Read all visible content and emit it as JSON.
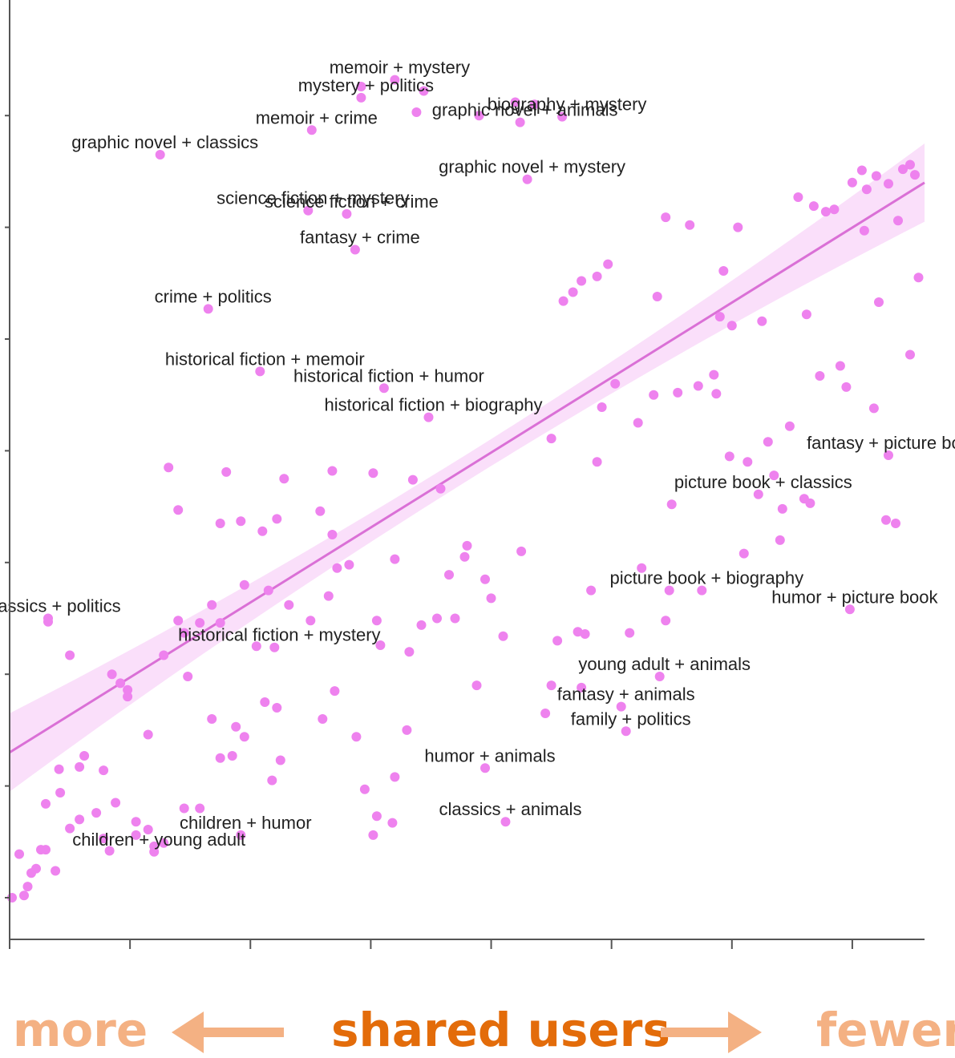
{
  "colors": {
    "point": "#ee82ee",
    "trend": "#da70d6",
    "band": "#f6c9f6",
    "axis": "#555555",
    "label": "#222222",
    "footer_light": "#f4b183",
    "footer_dark": "#e36c0a"
  },
  "footer": {
    "left": "more",
    "center": "shared users",
    "right": "fewer",
    "left_arrow_icon": "left-arrow-icon",
    "right_arrow_icon": "right-arrow-icon"
  },
  "chart_data": {
    "type": "scatter",
    "title": "",
    "xlabel": "shared users",
    "ylabel": "",
    "xlim": [
      0,
      7.6
    ],
    "ylim": [
      -0.4,
      7.2
    ],
    "x_ticks": [
      0,
      1,
      2,
      3,
      4,
      5,
      6,
      7
    ],
    "y_ticks": [
      0,
      1,
      2,
      3,
      4,
      5,
      6,
      7
    ],
    "tick_labels_shown": false,
    "grid": false,
    "trend_line": {
      "x": [
        0,
        7.6
      ],
      "y": [
        1.3,
        6.4
      ],
      "band_halfwidth_at_ends": 0.35,
      "band_halfwidth_at_center": 0.12
    },
    "labeled_points": [
      {
        "label": "memoir + mystery",
        "x": 3.2,
        "y": 7.32
      },
      {
        "label": "mystery + politics",
        "x": 2.92,
        "y": 7.16
      },
      {
        "label": "memoir + crime",
        "x": 2.51,
        "y": 6.87
      },
      {
        "label": "graphic novel + classics",
        "x": 1.25,
        "y": 6.65
      },
      {
        "label": "biography + mystery",
        "x": 4.59,
        "y": 6.99
      },
      {
        "label": "graphic novel + animals",
        "x": 4.24,
        "y": 6.94
      },
      {
        "label": "graphic novel + mystery",
        "x": 4.3,
        "y": 6.43
      },
      {
        "label": "science fiction + mystery",
        "x": 2.48,
        "y": 6.15
      },
      {
        "label": "science fiction + crime",
        "x": 2.8,
        "y": 6.12
      },
      {
        "label": "fantasy + crime",
        "x": 2.87,
        "y": 5.8
      },
      {
        "label": "crime + politics",
        "x": 1.65,
        "y": 5.27
      },
      {
        "label": "historical fiction + memoir",
        "x": 2.08,
        "y": 4.71
      },
      {
        "label": "historical fiction + humor",
        "x": 3.11,
        "y": 4.56
      },
      {
        "label": "historical fiction + biography",
        "x": 3.48,
        "y": 4.3
      },
      {
        "label": "fantasy + picture book",
        "x": 7.3,
        "y": 3.96
      },
      {
        "label": "picture book + classics",
        "x": 6.22,
        "y": 3.61
      },
      {
        "label": "picture book + biography",
        "x": 5.75,
        "y": 2.75
      },
      {
        "label": "humor + picture book",
        "x": 6.98,
        "y": 2.58
      },
      {
        "label": "classics + politics",
        "x": 0.32,
        "y": 2.5
      },
      {
        "label": "historical fiction + mystery",
        "x": 2.2,
        "y": 2.24
      },
      {
        "label": "young adult + animals",
        "x": 5.4,
        "y": 1.98
      },
      {
        "label": "fantasy + animals",
        "x": 5.08,
        "y": 1.71
      },
      {
        "label": "family + politics",
        "x": 5.12,
        "y": 1.49
      },
      {
        "label": "humor + animals",
        "x": 3.95,
        "y": 1.16
      },
      {
        "label": "classics + animals",
        "x": 4.12,
        "y": 0.68
      },
      {
        "label": "children + humor",
        "x": 1.92,
        "y": 0.56
      },
      {
        "label": "children + young adult",
        "x": 1.2,
        "y": 0.41
      }
    ],
    "other_points": [
      [
        2.92,
        7.26
      ],
      [
        3.44,
        7.22
      ],
      [
        3.38,
        7.03
      ],
      [
        3.9,
        7.0
      ],
      [
        4.2,
        7.12
      ],
      [
        4.36,
        7.1
      ],
      [
        6.55,
        6.27
      ],
      [
        6.68,
        6.19
      ],
      [
        6.78,
        6.14
      ],
      [
        6.85,
        6.16
      ],
      [
        7.0,
        6.4
      ],
      [
        7.08,
        6.51
      ],
      [
        7.12,
        6.34
      ],
      [
        7.2,
        6.46
      ],
      [
        7.3,
        6.39
      ],
      [
        7.42,
        6.52
      ],
      [
        7.52,
        6.47
      ],
      [
        7.48,
        6.56
      ],
      [
        7.1,
        5.97
      ],
      [
        7.38,
        6.06
      ],
      [
        5.45,
        6.09
      ],
      [
        5.65,
        6.02
      ],
      [
        6.05,
        6.0
      ],
      [
        4.97,
        5.67
      ],
      [
        4.88,
        5.56
      ],
      [
        4.75,
        5.52
      ],
      [
        4.68,
        5.42
      ],
      [
        4.6,
        5.34
      ],
      [
        5.38,
        5.38
      ],
      [
        5.93,
        5.61
      ],
      [
        5.9,
        5.2
      ],
      [
        6.0,
        5.12
      ],
      [
        6.25,
        5.16
      ],
      [
        6.62,
        5.22
      ],
      [
        7.22,
        5.33
      ],
      [
        7.55,
        5.55
      ],
      [
        7.48,
        4.86
      ],
      [
        6.9,
        4.76
      ],
      [
        6.95,
        4.57
      ],
      [
        7.18,
        4.38
      ],
      [
        6.73,
        4.67
      ],
      [
        6.48,
        4.22
      ],
      [
        6.3,
        4.08
      ],
      [
        6.13,
        3.9
      ],
      [
        5.85,
        4.68
      ],
      [
        5.72,
        4.58
      ],
      [
        5.55,
        4.52
      ],
      [
        5.87,
        4.51
      ],
      [
        5.35,
        4.5
      ],
      [
        5.22,
        4.25
      ],
      [
        5.03,
        4.6
      ],
      [
        4.92,
        4.39
      ],
      [
        4.5,
        4.11
      ],
      [
        4.88,
        3.9
      ],
      [
        5.98,
        3.95
      ],
      [
        6.35,
        3.78
      ],
      [
        6.6,
        3.57
      ],
      [
        6.65,
        3.53
      ],
      [
        6.42,
        3.48
      ],
      [
        7.28,
        3.38
      ],
      [
        7.36,
        3.35
      ],
      [
        6.1,
        3.08
      ],
      [
        6.4,
        3.2
      ],
      [
        5.5,
        3.52
      ],
      [
        5.25,
        2.95
      ],
      [
        5.48,
        2.75
      ],
      [
        4.72,
        2.38
      ],
      [
        4.78,
        2.36
      ],
      [
        4.55,
        2.3
      ],
      [
        4.1,
        2.34
      ],
      [
        3.95,
        2.85
      ],
      [
        3.65,
        2.89
      ],
      [
        3.42,
        2.44
      ],
      [
        3.32,
        2.2
      ],
      [
        3.55,
        2.5
      ],
      [
        3.7,
        2.5
      ],
      [
        3.78,
        3.05
      ],
      [
        3.8,
        3.15
      ],
      [
        4.0,
        2.68
      ],
      [
        4.25,
        3.1
      ],
      [
        4.83,
        2.75
      ],
      [
        5.15,
        2.37
      ],
      [
        5.45,
        2.48
      ],
      [
        4.45,
        1.65
      ],
      [
        4.5,
        1.9
      ],
      [
        4.75,
        1.88
      ],
      [
        3.88,
        1.9
      ],
      [
        3.05,
        2.48
      ],
      [
        2.65,
        2.7
      ],
      [
        2.72,
        2.95
      ],
      [
        2.82,
        2.98
      ],
      [
        2.5,
        2.48
      ],
      [
        2.32,
        2.62
      ],
      [
        2.15,
        2.75
      ],
      [
        1.95,
        2.8
      ],
      [
        1.68,
        2.62
      ],
      [
        1.58,
        2.46
      ],
      [
        1.75,
        2.46
      ],
      [
        1.4,
        2.48
      ],
      [
        1.45,
        2.37
      ],
      [
        1.28,
        2.17
      ],
      [
        2.05,
        2.25
      ],
      [
        0.32,
        2.47
      ],
      [
        2.1,
        3.28
      ],
      [
        2.28,
        3.75
      ],
      [
        2.68,
        3.82
      ],
      [
        3.02,
        3.8
      ],
      [
        3.35,
        3.74
      ],
      [
        3.58,
        3.66
      ],
      [
        1.8,
        3.81
      ],
      [
        1.32,
        3.85
      ],
      [
        1.4,
        3.47
      ],
      [
        1.92,
        3.37
      ],
      [
        2.22,
        3.39
      ],
      [
        1.75,
        3.35
      ],
      [
        2.58,
        3.46
      ],
      [
        2.68,
        3.25
      ],
      [
        3.2,
        3.03
      ],
      [
        0.5,
        2.17
      ],
      [
        0.85,
        2.0
      ],
      [
        0.92,
        1.92
      ],
      [
        0.98,
        1.86
      ],
      [
        1.48,
        1.98
      ],
      [
        2.12,
        1.75
      ],
      [
        1.15,
        1.46
      ],
      [
        1.75,
        1.25
      ],
      [
        1.95,
        1.44
      ],
      [
        2.25,
        1.23
      ],
      [
        2.6,
        1.6
      ],
      [
        0.62,
        1.27
      ],
      [
        0.58,
        1.17
      ],
      [
        0.41,
        1.15
      ],
      [
        0.78,
        1.14
      ],
      [
        0.98,
        1.8
      ],
      [
        1.68,
        1.6
      ],
      [
        1.85,
        1.27
      ],
      [
        2.18,
        1.05
      ],
      [
        3.3,
        1.5
      ],
      [
        3.2,
        1.08
      ],
      [
        2.88,
        1.44
      ],
      [
        2.95,
        0.97
      ],
      [
        3.05,
        0.73
      ],
      [
        3.18,
        0.67
      ],
      [
        3.02,
        0.56
      ],
      [
        0.42,
        0.94
      ],
      [
        0.3,
        0.84
      ],
      [
        0.72,
        0.76
      ],
      [
        0.58,
        0.7
      ],
      [
        1.05,
        0.68
      ],
      [
        0.5,
        0.62
      ],
      [
        1.15,
        0.61
      ],
      [
        1.05,
        0.56
      ],
      [
        0.78,
        0.53
      ],
      [
        0.3,
        0.43
      ],
      [
        1.28,
        0.49
      ],
      [
        1.58,
        0.8
      ],
      [
        1.45,
        0.8
      ],
      [
        0.08,
        0.39
      ],
      [
        0.22,
        0.26
      ],
      [
        0.15,
        0.1
      ],
      [
        0.02,
        0.0
      ],
      [
        0.12,
        0.02
      ],
      [
        0.18,
        0.22
      ],
      [
        1.2,
        0.46
      ],
      [
        3.08,
        2.26
      ],
      [
        2.7,
        1.85
      ],
      [
        2.22,
        1.7
      ],
      [
        1.88,
        1.53
      ],
      [
        0.38,
        0.24
      ],
      [
        0.26,
        0.43
      ],
      [
        0.83,
        0.42
      ],
      [
        0.88,
        0.85
      ]
    ]
  }
}
